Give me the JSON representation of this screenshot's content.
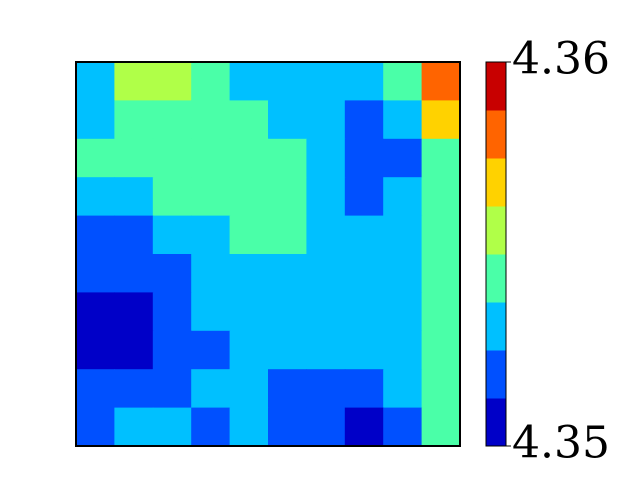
{
  "chart_data": {
    "type": "contourf",
    "levels": [
      4.35,
      4.35125,
      4.3525,
      4.35375,
      4.355,
      4.35625,
      4.3575,
      4.35875,
      4.36
    ],
    "colors": [
      "#0000c8",
      "#0050ff",
      "#00c0ff",
      "#4affa8",
      "#b0ff48",
      "#ffd200",
      "#ff6400",
      "#c80000"
    ],
    "z": [
      [
        4.3531,
        4.3556,
        4.3556,
        4.3544,
        4.3531,
        4.3531,
        4.3531,
        4.3531,
        4.3544,
        4.3581
      ],
      [
        4.3531,
        4.3544,
        4.3544,
        4.3544,
        4.3544,
        4.3531,
        4.3531,
        4.3519,
        4.3531,
        4.3569
      ],
      [
        4.3544,
        4.3544,
        4.3544,
        4.3544,
        4.3544,
        4.3544,
        4.3531,
        4.3519,
        4.3519,
        4.3544
      ],
      [
        4.3531,
        4.3531,
        4.3544,
        4.3544,
        4.3544,
        4.3544,
        4.3531,
        4.3519,
        4.3531,
        4.3544
      ],
      [
        4.3519,
        4.3519,
        4.3531,
        4.3531,
        4.3544,
        4.3544,
        4.3531,
        4.3531,
        4.3531,
        4.3544
      ],
      [
        4.3519,
        4.3519,
        4.3519,
        4.3531,
        4.3531,
        4.3531,
        4.3531,
        4.3531,
        4.3531,
        4.3544
      ],
      [
        4.3506,
        4.3506,
        4.3519,
        4.3531,
        4.3531,
        4.3531,
        4.3531,
        4.3531,
        4.3531,
        4.3544
      ],
      [
        4.3506,
        4.3506,
        4.3519,
        4.3519,
        4.3531,
        4.3531,
        4.3531,
        4.3531,
        4.3531,
        4.3544
      ],
      [
        4.3519,
        4.3519,
        4.3519,
        4.3531,
        4.3531,
        4.3519,
        4.3519,
        4.3519,
        4.3531,
        4.3544
      ],
      [
        4.3519,
        4.3531,
        4.3531,
        4.3519,
        4.3531,
        4.3519,
        4.3519,
        4.3506,
        4.3519,
        4.3544
      ]
    ],
    "colorbar_ticks": [
      4.35,
      4.36
    ]
  }
}
